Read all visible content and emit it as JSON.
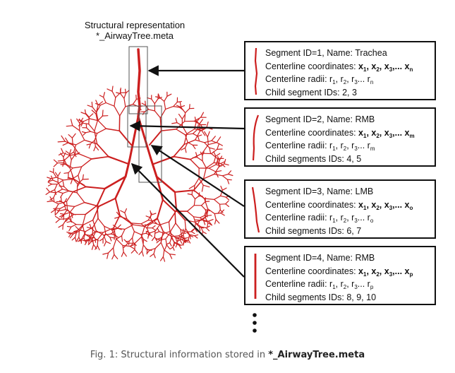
{
  "heading": {
    "line1": "Structural representation",
    "line2": "*_AirwayTree.meta"
  },
  "segments": [
    {
      "id_line": "Segment ID=1, Name: Trachea",
      "coords_label": "Centerline coordinates:",
      "coords_last_sub": "n",
      "radii_label": "Centerline radii:",
      "radii_last_sub": "n",
      "children_line": "Child segment IDs: 2, 3"
    },
    {
      "id_line": "Segment ID=2, Name: RMB",
      "coords_label": "Centerline coordinates:",
      "coords_last_sub": "m",
      "radii_label": "Centerline radii:",
      "radii_last_sub": "m",
      "children_line": "Child segments IDs: 4, 5"
    },
    {
      "id_line": "Segment ID=3, Name: LMB",
      "coords_label": "Centerline coordinates:",
      "coords_last_sub": "o",
      "radii_label": "Centerline radii:",
      "radii_last_sub": "o",
      "children_line": "Child segments IDs: 6, 7"
    },
    {
      "id_line": "Segment ID=4, Name: RMB",
      "coords_label": "Centerline coordinates:",
      "coords_last_sub": "p",
      "radii_label": "Centerline radii:",
      "radii_last_sub": "p",
      "children_line": "Child segments IDs: 8, 9, 10"
    }
  ],
  "caption": {
    "prefix": "Fig. 1: Structural information stored in ",
    "filename": "*_AirwayTree.meta"
  },
  "colors": {
    "airway": "#cc1f1f",
    "box_border": "#111111",
    "arrow": "#111111",
    "caption_text": "#555555"
  }
}
